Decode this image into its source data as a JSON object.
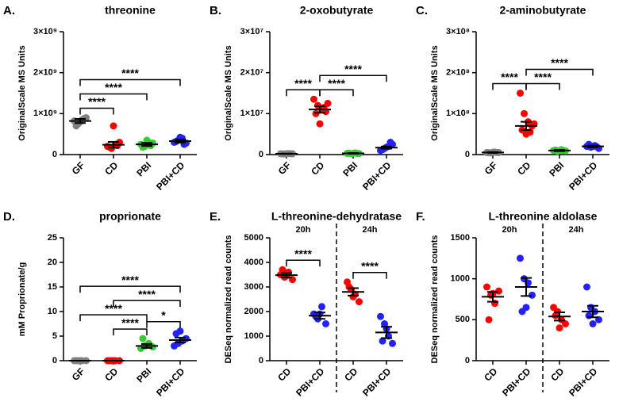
{
  "chart_data": [
    {
      "type": "dot",
      "panel": "A.",
      "title": "threonine",
      "ylabel": "OriginalScale MS Units",
      "categories": [
        "GF",
        "CD",
        "PBI",
        "PBI+CD"
      ],
      "colors": [
        "#808080",
        "#ff0000",
        "#33cc33",
        "#2222ff"
      ],
      "points": [
        [
          820000000,
          750000000,
          850000000,
          900000000,
          700000000,
          800000000,
          880000000
        ],
        [
          200000000,
          150000000,
          250000000,
          300000000,
          180000000,
          700000000,
          220000000
        ],
        [
          250000000,
          200000000,
          300000000,
          280000000,
          180000000,
          350000000,
          220000000
        ],
        [
          300000000,
          350000000,
          400000000,
          280000000,
          320000000,
          420000000,
          250000000
        ]
      ],
      "means": [
        820000000,
        240000000,
        250000000,
        330000000
      ],
      "sems": [
        50000000,
        70000000,
        40000000,
        40000000
      ],
      "ylim": [
        0,
        3000000000
      ],
      "yticks": [
        0,
        {
          "value": 1000000000,
          "label": "1×10⁹"
        },
        {
          "value": 2000000000,
          "label": "2×10⁹"
        },
        {
          "value": 3000000000,
          "label": "3×10⁹"
        }
      ],
      "brackets": [
        {
          "from": 0,
          "to": 1,
          "label": "****"
        },
        {
          "from": 0,
          "to": 2,
          "label": "****"
        },
        {
          "from": 0,
          "to": 3,
          "label": "****"
        }
      ]
    },
    {
      "type": "dot",
      "panel": "B.",
      "title": "2-oxobutyrate",
      "ylabel": "OriginalScale MS Units",
      "categories": [
        "GF",
        "CD",
        "PBI",
        "PBI+CD"
      ],
      "colors": [
        "#808080",
        "#ff0000",
        "#33cc33",
        "#2222ff"
      ],
      "points": [
        [
          200000,
          150000,
          250000,
          200000,
          180000,
          220000,
          210000
        ],
        [
          13500000,
          12000000,
          11000000,
          10500000,
          10000000,
          7500000,
          11500000,
          12500000
        ],
        [
          300000,
          200000,
          400000,
          250000,
          350000,
          300000,
          280000
        ],
        [
          1000000,
          1500000,
          2000000,
          2500000,
          1200000,
          1800000,
          3000000
        ]
      ],
      "means": [
        200000,
        11000000,
        300000,
        1700000
      ],
      "sems": [
        50000,
        800000,
        80000,
        250000
      ],
      "ylim": [
        0,
        30000000
      ],
      "yticks": [
        0,
        {
          "value": 10000000,
          "label": "1×10⁷"
        },
        {
          "value": 20000000,
          "label": "2×10⁷"
        },
        {
          "value": 30000000,
          "label": "3×10⁷"
        }
      ],
      "brackets": [
        {
          "from": 1,
          "to": 2,
          "label": "****"
        },
        {
          "from": 0,
          "to": 1,
          "label": "****"
        },
        {
          "from": 1,
          "to": 3,
          "label": "****"
        }
      ]
    },
    {
      "type": "dot",
      "panel": "C.",
      "title": "2-aminobutyrate",
      "ylabel": "OriginalScale MS Units",
      "categories": [
        "GF",
        "CD",
        "PBI",
        "PBI+CD"
      ],
      "colors": [
        "#808080",
        "#ff0000",
        "#33cc33",
        "#2222ff"
      ],
      "points": [
        [
          5000000,
          4000000,
          6000000,
          5000000,
          4500000,
          5500000,
          5000000
        ],
        [
          150000000,
          100000000,
          80000000,
          70000000,
          60000000,
          50000000,
          55000000,
          75000000
        ],
        [
          10000000,
          8000000,
          12000000,
          9000000,
          11000000,
          10000000,
          9500000
        ],
        [
          20000000,
          18000000,
          22000000,
          15000000,
          25000000,
          20000000,
          19000000
        ]
      ],
      "means": [
        5000000,
        70000000,
        10000000,
        20000000
      ],
      "sems": [
        1000000,
        10000000,
        1500000,
        2000000
      ],
      "ylim": [
        0,
        300000000
      ],
      "yticks": [
        0,
        {
          "value": 100000000,
          "label": "1×10⁸"
        },
        {
          "value": 200000000,
          "label": "2×10⁸"
        },
        {
          "value": 300000000,
          "label": "3×10⁸"
        }
      ],
      "brackets": [
        {
          "from": 1,
          "to": 2,
          "label": "****"
        },
        {
          "from": 0,
          "to": 1,
          "label": "****"
        },
        {
          "from": 1,
          "to": 3,
          "label": "****"
        }
      ]
    },
    {
      "type": "dot",
      "panel": "D.",
      "title": "proprionate",
      "ylabel": "mM Proprionate/g",
      "categories": [
        "GF",
        "CD",
        "PBI",
        "PBI+CD"
      ],
      "colors": [
        "#808080",
        "#ff0000",
        "#33cc33",
        "#2222ff"
      ],
      "points": [
        [
          0,
          0,
          0,
          0,
          0,
          0
        ],
        [
          0,
          0,
          0,
          0,
          0,
          0
        ],
        [
          2.5,
          3,
          3.5,
          2.8,
          4.5
        ],
        [
          3,
          3.5,
          4,
          4.5,
          5.5,
          6
        ]
      ],
      "means": [
        0,
        0,
        3,
        4.2
      ],
      "sems": [
        0,
        0,
        0.4,
        0.5
      ],
      "ylim": [
        0,
        25
      ],
      "yticks": [
        0,
        5,
        10,
        15,
        20,
        25
      ],
      "brackets": [
        {
          "from": 2,
          "to": 3,
          "label": "*"
        },
        {
          "from": 1,
          "to": 2,
          "label": "****"
        },
        {
          "from": 0,
          "to": 2,
          "label": "****"
        },
        {
          "from": 1,
          "to": 3,
          "label": "****"
        },
        {
          "from": 0,
          "to": 3,
          "label": "****"
        }
      ]
    },
    {
      "type": "dot",
      "panel": "E.",
      "title": "L-threonine-dehydratase",
      "ylabel": "DESeq normalized read counts",
      "groups": [
        "20h",
        "24h"
      ],
      "categories": [
        "CD",
        "PBI+CD",
        "CD",
        "PBI+CD"
      ],
      "colors": [
        "#ff0000",
        "#2222ff",
        "#ff0000",
        "#2222ff"
      ],
      "points": [
        [
          3500,
          3400,
          3600,
          3300,
          3700,
          3450
        ],
        [
          1900,
          1700,
          2200,
          1500,
          1800,
          1900
        ],
        [
          3200,
          2900,
          2700,
          2400,
          3000,
          2600
        ],
        [
          1800,
          1500,
          1000,
          700,
          800,
          1300
        ]
      ],
      "means": [
        3480,
        1830,
        2800,
        1150
      ],
      "sems": [
        90,
        130,
        150,
        230
      ],
      "ylim": [
        0,
        5000
      ],
      "yticks": [
        0,
        1000,
        2000,
        3000,
        4000,
        5000
      ],
      "brackets": [
        {
          "from": 0,
          "to": 1,
          "label": "****"
        },
        {
          "from": 2,
          "to": 3,
          "label": "****"
        }
      ]
    },
    {
      "type": "dot",
      "panel": "F.",
      "title": "L-threonine aldolase",
      "ylabel": "DESeq normalized read counts",
      "groups": [
        "20h",
        "24h"
      ],
      "categories": [
        "CD",
        "PBI+CD",
        "CD",
        "PBI+CD"
      ],
      "colors": [
        "#ff0000",
        "#2222ff",
        "#ff0000",
        "#2222ff"
      ],
      "points": [
        [
          900,
          800,
          700,
          850,
          500,
          820
        ],
        [
          1250,
          1000,
          950,
          800,
          600,
          650
        ],
        [
          650,
          600,
          500,
          450,
          550,
          400
        ],
        [
          900,
          650,
          600,
          500,
          550,
          450
        ]
      ],
      "means": [
        780,
        900,
        540,
        600
      ],
      "sems": [
        60,
        110,
        50,
        70
      ],
      "ylim": [
        0,
        1500
      ],
      "yticks": [
        0,
        500,
        1000,
        1500
      ],
      "brackets": []
    }
  ]
}
